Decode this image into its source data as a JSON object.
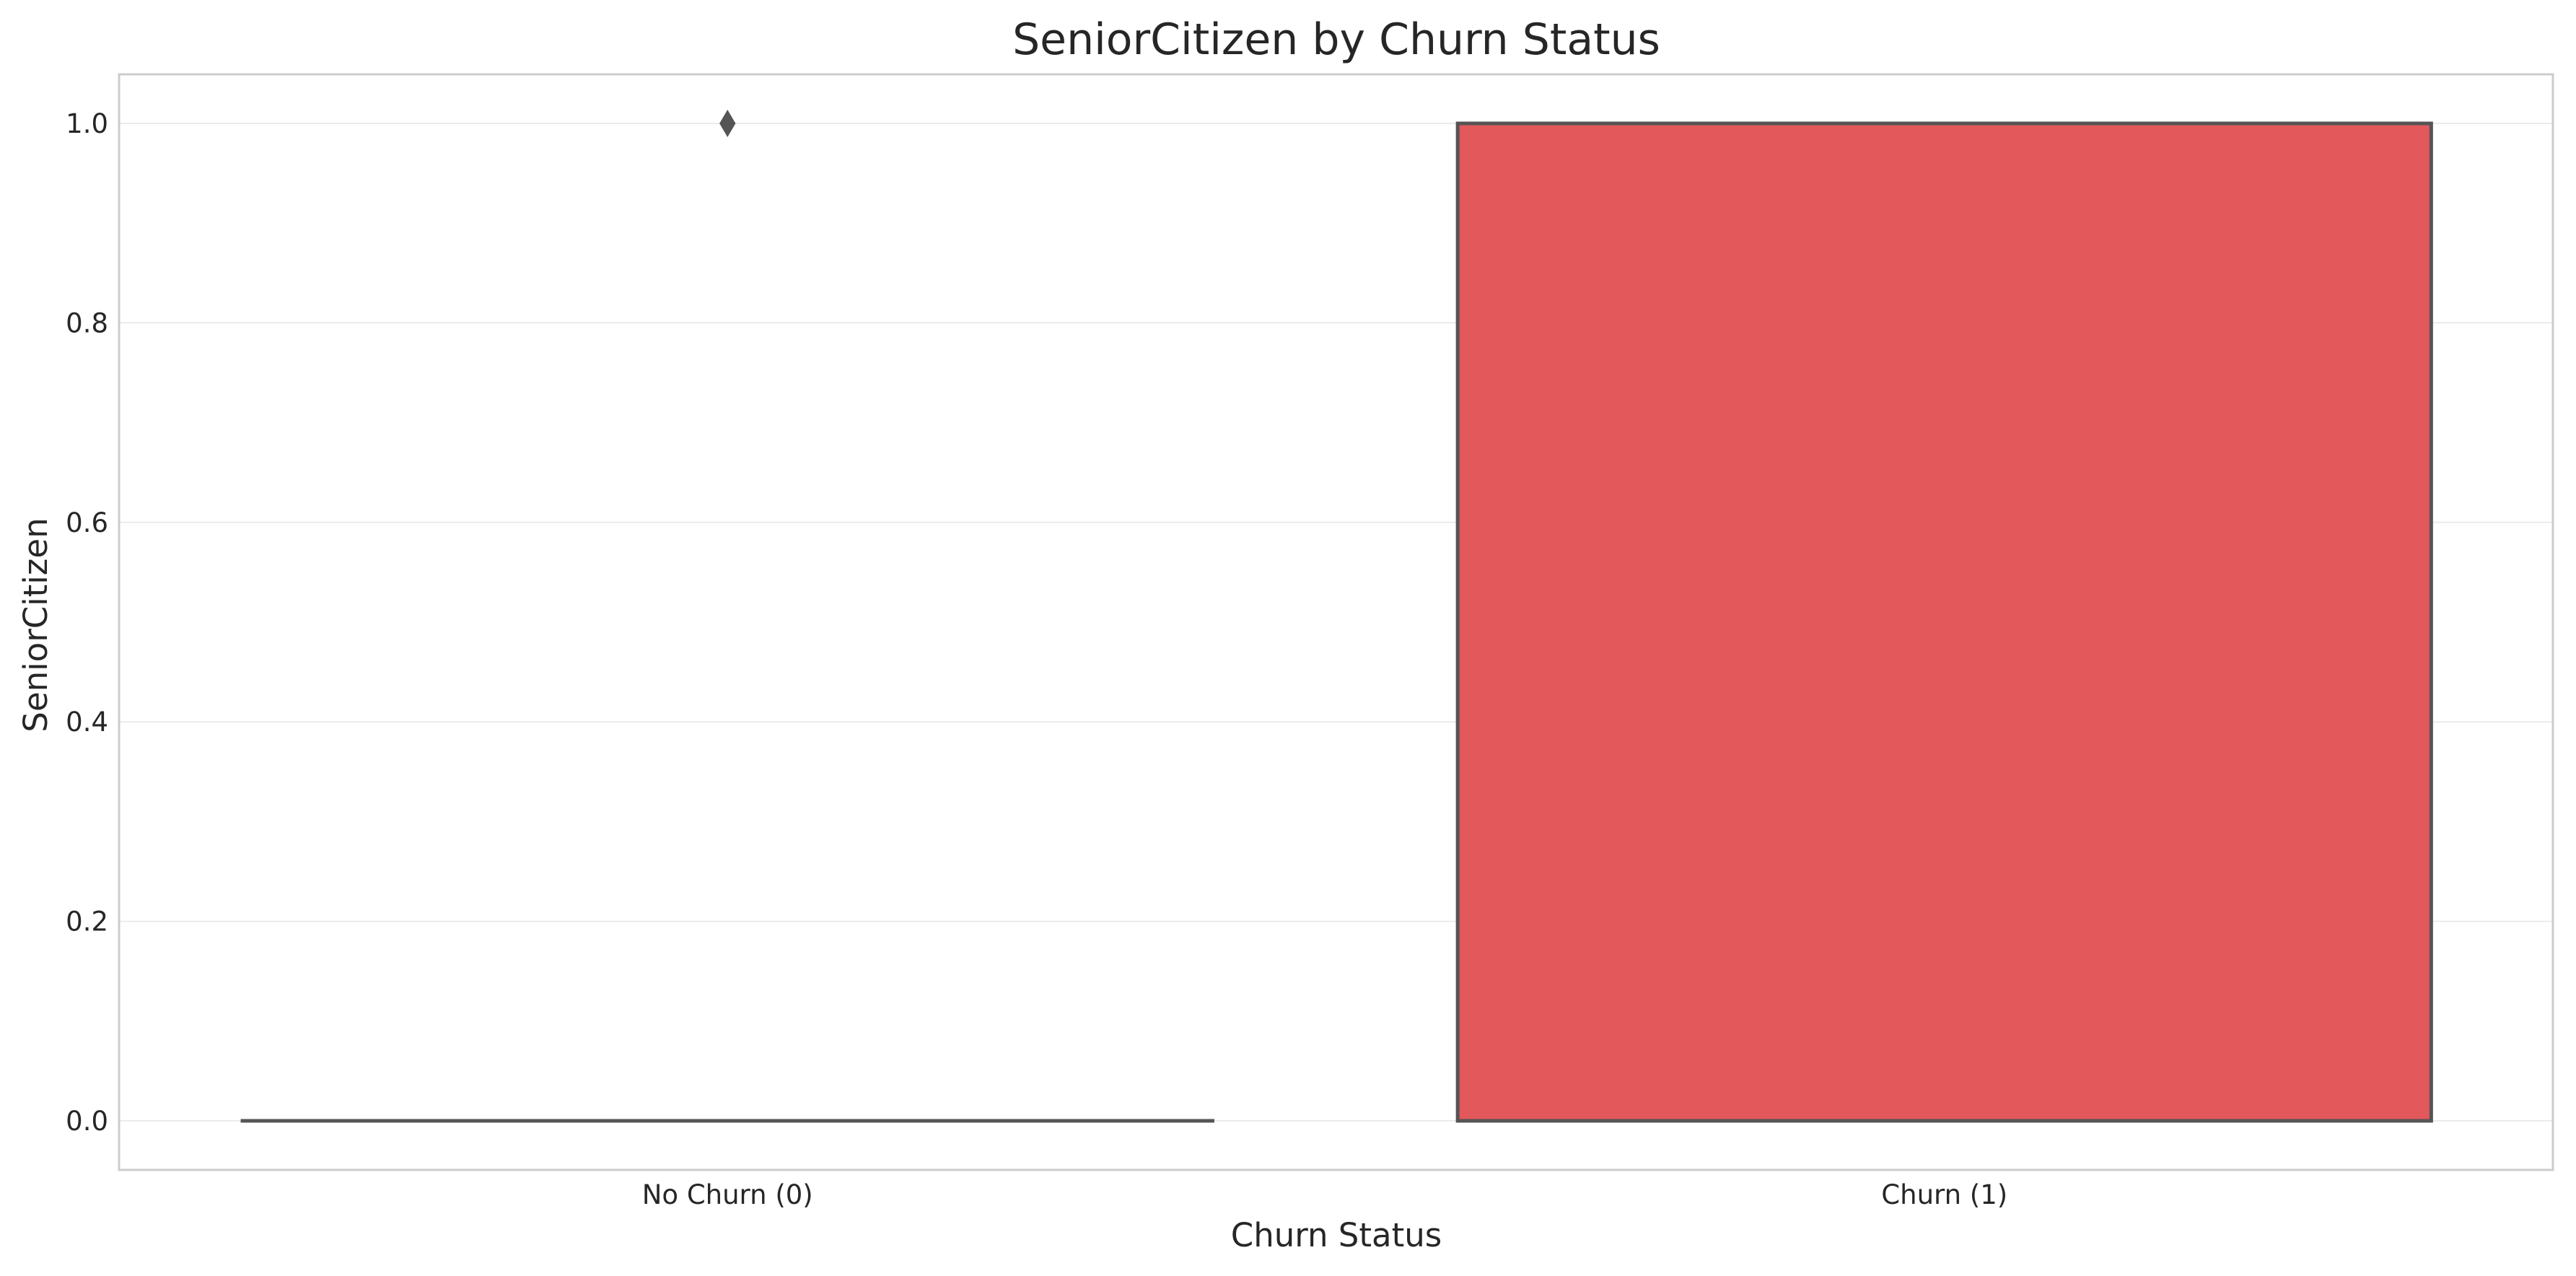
{
  "chart_data": {
    "type": "box",
    "title": "SeniorCitizen by Churn Status",
    "xlabel": "Churn Status",
    "ylabel": "SeniorCitizen",
    "categories": [
      "No Churn (0)",
      "Churn (1)"
    ],
    "ylim": [
      -0.05,
      1.05
    ],
    "yticks": [
      0.0,
      0.2,
      0.4,
      0.6,
      0.8,
      1.0
    ],
    "ytick_labels": [
      "0.0",
      "0.2",
      "0.4",
      "0.6",
      "0.8",
      "1.0"
    ],
    "grid": true,
    "boxes": [
      {
        "category": "No Churn (0)",
        "min": 0,
        "q1": 0,
        "median": 0,
        "q3": 0,
        "max": 0,
        "outliers": [
          1
        ],
        "color": "#4a90d9"
      },
      {
        "category": "Churn (1)",
        "min": 0,
        "q1": 0,
        "median": 0,
        "q3": 1,
        "max": 1,
        "outliers": [],
        "color": "#e2585b"
      }
    ],
    "colors": {
      "line": "#555555",
      "grid": "#ebebeb",
      "frame": "#cccccc"
    }
  }
}
